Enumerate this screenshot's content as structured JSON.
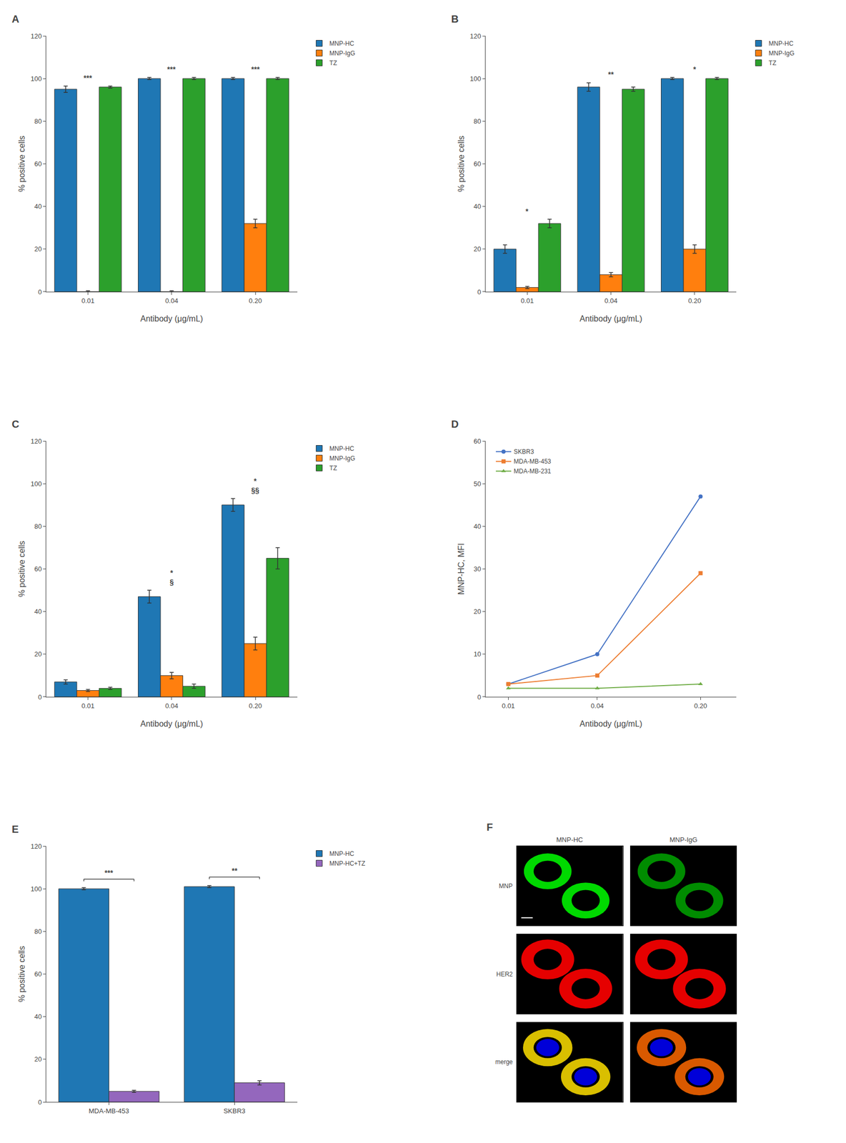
{
  "chart_data": [
    {
      "type": "bar",
      "title": "A",
      "categories": [
        "0.01",
        "0.04",
        "0.20"
      ],
      "series": [
        {
          "name": "MNP-HC",
          "color": "#1f77b4",
          "values": [
            95,
            100,
            100
          ],
          "errors": [
            1.5,
            0.5,
            0.5
          ]
        },
        {
          "name": "MNP-IgG",
          "color": "#ff7f0e",
          "values": [
            0,
            0,
            32
          ],
          "errors": [
            0.5,
            0.5,
            2
          ]
        },
        {
          "name": "TZ",
          "color": "#2ca02c",
          "values": [
            96,
            100,
            100
          ],
          "errors": [
            0.5,
            0.5,
            0.5
          ]
        }
      ],
      "significance": [
        [
          "***"
        ],
        [
          "***"
        ],
        [
          "***"
        ]
      ],
      "xlabel": "Antibody (μg/mL)",
      "ylabel": "% positive cells",
      "ylim": [
        0,
        120
      ],
      "yticks": [
        0,
        20,
        40,
        60,
        80,
        100,
        120
      ],
      "grid": false,
      "legend": "right"
    },
    {
      "type": "bar",
      "title": "B",
      "categories": [
        "0.01",
        "0.04",
        "0.20"
      ],
      "series": [
        {
          "name": "MNP-HC",
          "color": "#1f77b4",
          "values": [
            20,
            96,
            100
          ],
          "errors": [
            2,
            2,
            0.5
          ]
        },
        {
          "name": "MNP-IgG",
          "color": "#ff7f0e",
          "values": [
            2,
            8,
            20
          ],
          "errors": [
            0.5,
            1,
            2
          ]
        },
        {
          "name": "TZ",
          "color": "#2ca02c",
          "values": [
            32,
            95,
            100
          ],
          "errors": [
            2,
            1,
            0.5
          ]
        }
      ],
      "significance": [
        [
          "*"
        ],
        [
          "**"
        ],
        [
          "*"
        ]
      ],
      "xlabel": "Antibody (μg/mL)",
      "ylabel": "% positive cells",
      "ylim": [
        0,
        120
      ],
      "yticks": [
        0,
        20,
        40,
        60,
        80,
        100,
        120
      ],
      "grid": false,
      "legend": "right"
    },
    {
      "type": "bar",
      "title": "C",
      "categories": [
        "0.01",
        "0.04",
        "0.20"
      ],
      "series": [
        {
          "name": "MNP-HC",
          "color": "#1f77b4",
          "values": [
            7,
            47,
            90
          ],
          "errors": [
            1,
            3,
            3
          ]
        },
        {
          "name": "MNP-IgG",
          "color": "#ff7f0e",
          "values": [
            3,
            10,
            25
          ],
          "errors": [
            0.5,
            1.5,
            3
          ]
        },
        {
          "name": "TZ",
          "color": "#2ca02c",
          "values": [
            4,
            5,
            65
          ],
          "errors": [
            0.5,
            1,
            5
          ]
        }
      ],
      "significance": [
        [],
        [
          "*",
          "§"
        ],
        [
          "*",
          "§§"
        ]
      ],
      "xlabel": "Antibody (μg/mL)",
      "ylabel": "% positive cells",
      "ylim": [
        0,
        120
      ],
      "yticks": [
        0,
        20,
        40,
        60,
        80,
        100,
        120
      ],
      "grid": false,
      "legend": "right"
    },
    {
      "type": "line",
      "title": "D",
      "x": [
        0.01,
        0.04,
        0.2
      ],
      "series": [
        {
          "name": "SKBR3",
          "color": "#4472C4",
          "marker": "circle",
          "values": [
            3,
            10,
            47
          ]
        },
        {
          "name": "MDA-MB-453",
          "color": "#ED7D31",
          "marker": "square",
          "values": [
            3,
            5,
            29
          ]
        },
        {
          "name": "MDA-MB-231",
          "color": "#70AD47",
          "marker": "triangle-up",
          "values": [
            2,
            2,
            3
          ]
        }
      ],
      "log": "x",
      "xlim": [
        0.007,
        0.35
      ],
      "xticks": [
        0.01,
        0.04,
        {
          "value": 0.2,
          "label": "0.20"
        }
      ],
      "ylim": [
        0,
        60
      ],
      "yticks": [
        0,
        10,
        20,
        30,
        40,
        50,
        60
      ],
      "xlabel": "Antibody (μg/mL)",
      "ylabel": "MNP-HC, MFI",
      "grid": false,
      "legend": "upper left"
    },
    {
      "type": "bar",
      "title": "E",
      "categories": [
        "MDA-MB-453",
        "SKBR3"
      ],
      "series": [
        {
          "name": "MNP-HC",
          "color": "#1f77b4",
          "values": [
            100,
            101
          ],
          "errors": [
            0.5,
            0.5
          ]
        },
        {
          "name": "MNP-HC+TZ",
          "color": "#9467bd",
          "values": [
            5,
            9
          ],
          "errors": [
            0.5,
            1
          ]
        }
      ],
      "significance": [
        "***",
        "**"
      ],
      "ylabel": "% positive cells",
      "ylim": [
        0,
        120
      ],
      "yticks": [
        0,
        20,
        40,
        60,
        80,
        100,
        120
      ],
      "grid": false,
      "legend": "right"
    },
    {
      "type": "image",
      "title": "F",
      "columns": [
        "MNP-HC",
        "MNP-IgG"
      ],
      "series": [
        {
          "name": "MNP",
          "colors": [
            "#00d900",
            "#008c00"
          ]
        },
        {
          "name": "HER2",
          "colors": [
            "#e60000",
            "#e60000"
          ]
        },
        {
          "name": "merge",
          "colors": [
            "#d9bf00",
            "#d95900",
            "#0000d9"
          ]
        }
      ],
      "grid": false,
      "tick_labels": false
    }
  ]
}
